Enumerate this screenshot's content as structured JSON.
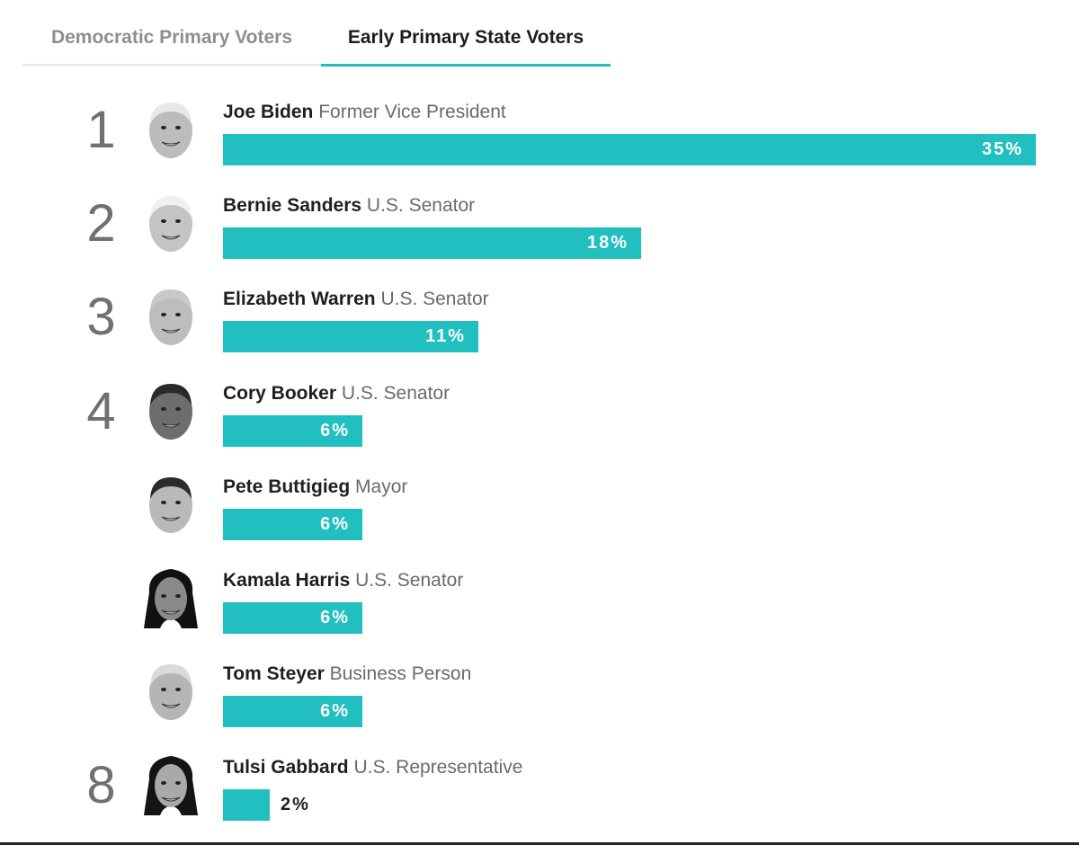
{
  "tabs": [
    {
      "label": "Democratic Primary Voters",
      "active": false
    },
    {
      "label": "Early Primary State Voters",
      "active": true
    }
  ],
  "chart_data": {
    "type": "bar",
    "orientation": "horizontal",
    "categories": [
      "Joe Biden",
      "Bernie Sanders",
      "Elizabeth Warren",
      "Cory Booker",
      "Pete Buttigieg",
      "Kamala Harris",
      "Tom Steyer",
      "Tulsi Gabbard"
    ],
    "values": [
      35,
      18,
      11,
      6,
      6,
      6,
      6,
      2
    ],
    "value_suffix": "%",
    "xlim": [
      0,
      35
    ],
    "bar_color": "#21bfbf",
    "rows": [
      {
        "rank": "1",
        "name": "Joe Biden",
        "title": "Former Vice President",
        "value": 35,
        "value_label": "35%",
        "icon": "joe-biden-photo"
      },
      {
        "rank": "2",
        "name": "Bernie Sanders",
        "title": "U.S. Senator",
        "value": 18,
        "value_label": "18%",
        "icon": "bernie-sanders-photo"
      },
      {
        "rank": "3",
        "name": "Elizabeth Warren",
        "title": "U.S. Senator",
        "value": 11,
        "value_label": "11%",
        "icon": "elizabeth-warren-photo"
      },
      {
        "rank": "4",
        "name": "Cory Booker",
        "title": "U.S. Senator",
        "value": 6,
        "value_label": "6%",
        "icon": "cory-booker-photo"
      },
      {
        "rank": "",
        "name": "Pete Buttigieg",
        "title": "Mayor",
        "value": 6,
        "value_label": "6%",
        "icon": "pete-buttigieg-photo"
      },
      {
        "rank": "",
        "name": "Kamala Harris",
        "title": "U.S. Senator",
        "value": 6,
        "value_label": "6%",
        "icon": "kamala-harris-photo"
      },
      {
        "rank": "",
        "name": "Tom Steyer",
        "title": "Business Person",
        "value": 6,
        "value_label": "6%",
        "icon": "tom-steyer-photo"
      },
      {
        "rank": "8",
        "name": "Tulsi Gabbard",
        "title": "U.S. Representative",
        "value": 2,
        "value_label": "2%",
        "icon": "tulsi-gabbard-photo"
      }
    ]
  }
}
